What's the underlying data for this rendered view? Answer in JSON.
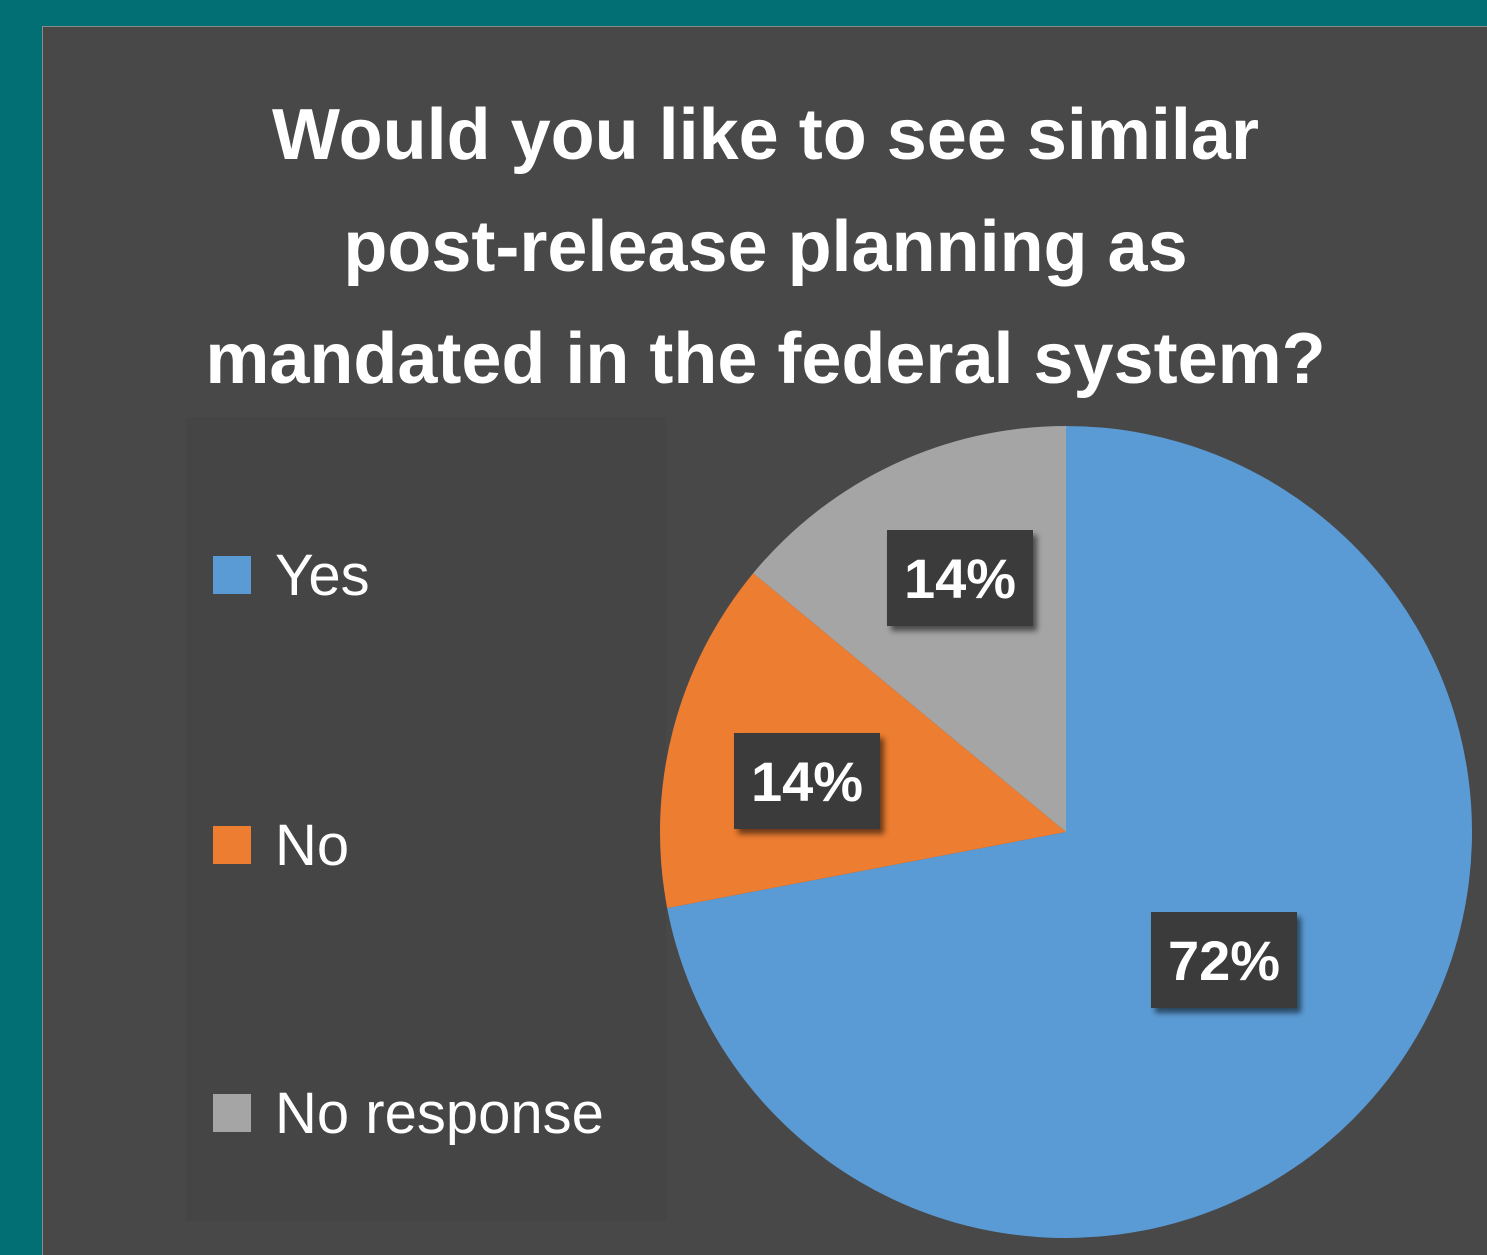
{
  "chart_data": {
    "type": "pie",
    "title": "Would you like to see similar post-release planning as mandated in the federal system?",
    "title_lines": [
      "Would you like to see similar",
      "post-release planning as",
      "mandated in the federal system?"
    ],
    "categories": [
      "Yes",
      "No",
      "No response"
    ],
    "values": [
      72,
      14,
      14
    ],
    "data_labels": [
      "72%",
      "14%",
      "14%"
    ],
    "colors": [
      "#5b9bd5",
      "#ed7d31",
      "#a5a5a5"
    ],
    "legend_placement": "left",
    "start_angle_deg": 0,
    "direction": "clockwise"
  },
  "theme": {
    "frame_color": "#016f73",
    "background": "#484848",
    "label_box": "#3a3a3a"
  }
}
